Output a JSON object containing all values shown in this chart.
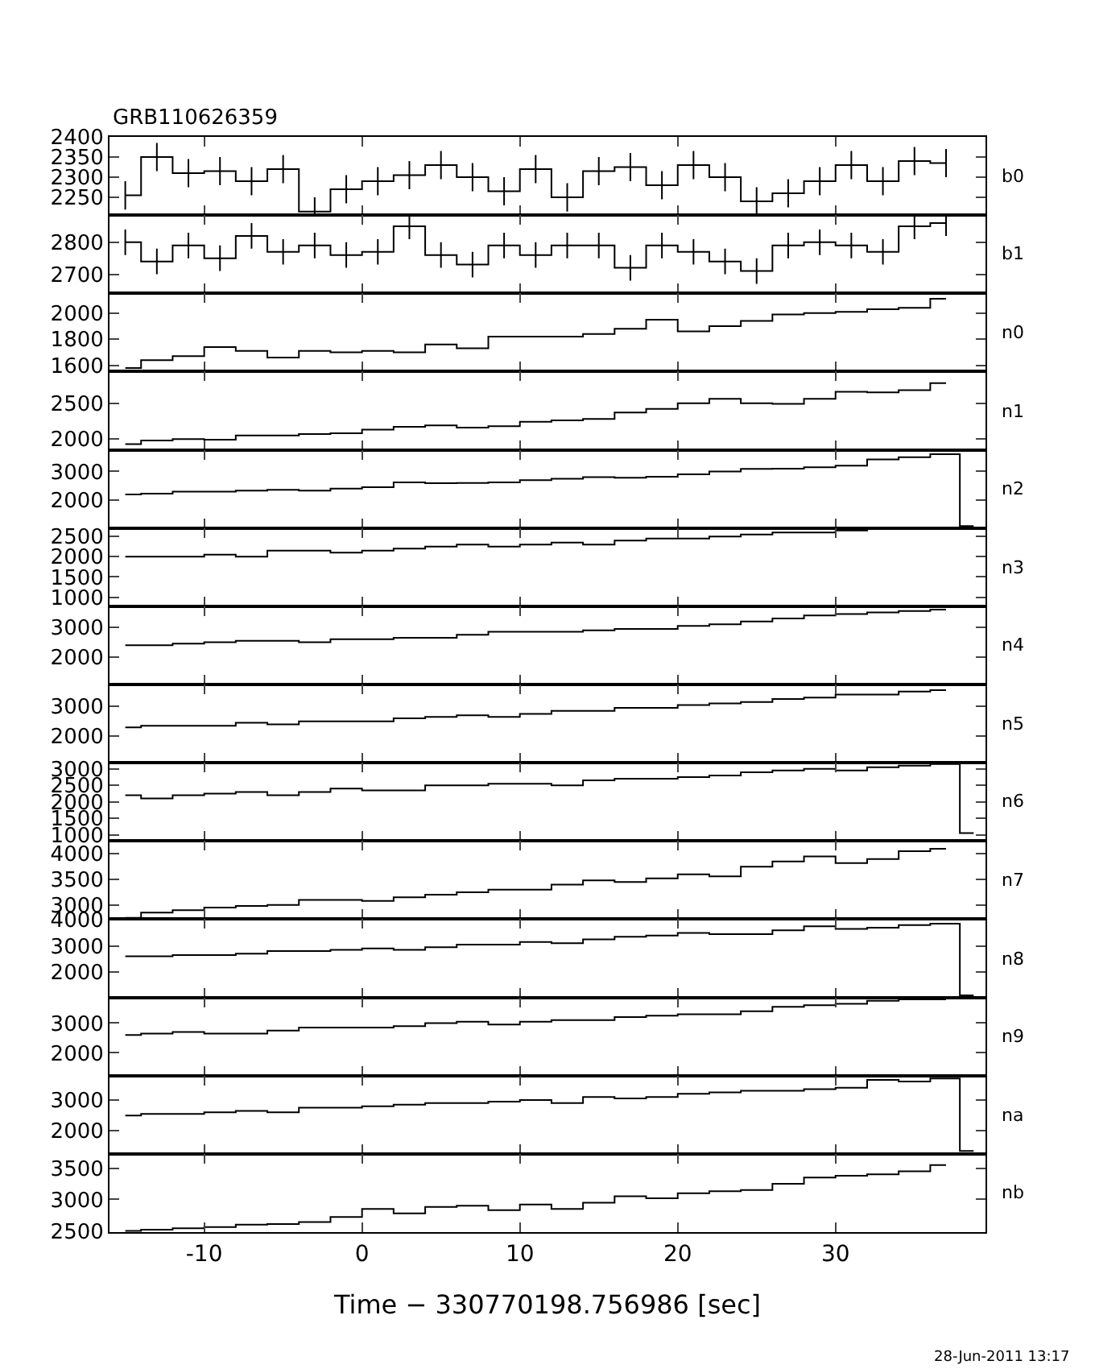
{
  "chart_data": [
    {
      "type": "step",
      "title": "GRB110626359",
      "x": [
        -15,
        -13,
        -11,
        -9,
        -7,
        -5,
        -3,
        -1,
        1,
        3,
        5,
        7,
        9,
        11,
        13,
        15,
        17,
        19,
        21,
        23,
        25,
        27,
        29,
        31,
        33,
        35,
        37
      ],
      "xlim": [
        -16,
        39.5
      ],
      "xticks": [
        -10,
        0,
        10,
        20,
        30
      ],
      "ylim": [
        2206,
        2400
      ],
      "yticks": [
        2250,
        2300,
        2350,
        2400
      ],
      "tick_labels": "y",
      "series": [
        {
          "name": "b0",
          "color": "#000000",
          "values": [
            2255,
            2350,
            2310,
            2315,
            2290,
            2320,
            2215,
            2270,
            2290,
            2305,
            2330,
            2300,
            2265,
            2320,
            2250,
            2315,
            2325,
            2280,
            2330,
            2300,
            2240,
            2260,
            2290,
            2330,
            2290,
            2340,
            2335
          ],
          "errors": [
            35,
            35,
            35,
            35,
            35,
            35,
            35,
            35,
            35,
            35,
            35,
            35,
            35,
            35,
            35,
            35,
            35,
            35,
            35,
            35,
            35,
            35,
            35,
            35,
            35,
            35,
            35
          ]
        }
      ]
    },
    {
      "type": "step",
      "x": [
        -15,
        -13,
        -11,
        -9,
        -7,
        -5,
        -3,
        -1,
        1,
        3,
        5,
        7,
        9,
        11,
        13,
        15,
        17,
        19,
        21,
        23,
        25,
        27,
        29,
        31,
        33,
        35,
        37
      ],
      "xlim": [
        -16,
        39.5
      ],
      "xticks": [
        -10,
        0,
        10,
        20,
        30
      ],
      "ylim": [
        2640,
        2885
      ],
      "yticks": [
        2700,
        2800
      ],
      "tick_labels": "y",
      "series": [
        {
          "name": "b1",
          "color": "#000000",
          "values": [
            2800,
            2740,
            2790,
            2750,
            2820,
            2770,
            2790,
            2760,
            2770,
            2850,
            2760,
            2730,
            2790,
            2760,
            2790,
            2790,
            2720,
            2790,
            2770,
            2740,
            2710,
            2790,
            2800,
            2790,
            2770,
            2850,
            2860
          ],
          "errors": [
            40,
            40,
            40,
            40,
            40,
            40,
            40,
            40,
            40,
            40,
            40,
            40,
            40,
            40,
            40,
            40,
            40,
            40,
            40,
            40,
            40,
            40,
            40,
            40,
            40,
            40,
            40
          ]
        }
      ]
    },
    {
      "type": "step",
      "x": [
        -15,
        -13,
        -11,
        -9,
        -7,
        -5,
        -3,
        -1,
        1,
        3,
        5,
        7,
        9,
        11,
        13,
        15,
        17,
        19,
        21,
        23,
        25,
        27,
        29,
        31,
        33,
        35,
        37
      ],
      "xlim": [
        -16,
        39.5
      ],
      "xticks": [
        -10,
        0,
        10,
        20,
        30
      ],
      "ylim": [
        1552,
        2151
      ],
      "yticks": [
        1600,
        1800,
        2000
      ],
      "tick_labels": "y",
      "series": [
        {
          "name": "n0",
          "color": "#000000",
          "values": [
            1580,
            1640,
            1670,
            1740,
            1710,
            1660,
            1710,
            1700,
            1710,
            1700,
            1760,
            1730,
            1820,
            1820,
            1820,
            1840,
            1880,
            1950,
            1860,
            1900,
            1940,
            1990,
            2000,
            2010,
            2030,
            2040,
            2110
          ]
        }
      ]
    },
    {
      "type": "step",
      "x": [
        -15,
        -13,
        -11,
        -9,
        -7,
        -5,
        -3,
        -1,
        1,
        3,
        5,
        7,
        9,
        11,
        13,
        15,
        17,
        19,
        21,
        23,
        25,
        27,
        29,
        31,
        33,
        35,
        37
      ],
      "xlim": [
        -16,
        39.5
      ],
      "xticks": [
        -10,
        0,
        10,
        20,
        30
      ],
      "ylim": [
        1850,
        2940
      ],
      "yticks": [
        2000,
        2500
      ],
      "tick_labels": "y",
      "series": [
        {
          "name": "n1",
          "color": "#000000",
          "values": [
            1930,
            1980,
            2000,
            1990,
            2050,
            2050,
            2070,
            2080,
            2130,
            2170,
            2190,
            2160,
            2180,
            2240,
            2260,
            2280,
            2370,
            2420,
            2500,
            2560,
            2500,
            2490,
            2560,
            2660,
            2650,
            2680,
            2780
          ]
        }
      ]
    },
    {
      "type": "step",
      "x": [
        -15,
        -13,
        -11,
        -9,
        -7,
        -5,
        -3,
        -1,
        1,
        3,
        5,
        7,
        9,
        11,
        13,
        15,
        17,
        19,
        21,
        23,
        25,
        27,
        29,
        31,
        33,
        35,
        37,
        38.75
      ],
      "xlim": [
        -16,
        39.5
      ],
      "xticks": [
        -10,
        0,
        10,
        20,
        30
      ],
      "ylim": [
        1030,
        3755
      ],
      "yticks": [
        2000,
        3000
      ],
      "tick_labels": "y",
      "series": [
        {
          "name": "n2",
          "color": "#000000",
          "values": [
            2200,
            2230,
            2300,
            2300,
            2330,
            2360,
            2330,
            2400,
            2450,
            2620,
            2590,
            2600,
            2620,
            2700,
            2750,
            2800,
            2780,
            2820,
            2900,
            3000,
            3090,
            3100,
            3150,
            3200,
            3420,
            3500,
            3600,
            1100
          ]
        }
      ]
    },
    {
      "type": "step",
      "x": [
        -15,
        -13,
        -11,
        -9,
        -7,
        -5,
        -3,
        -1,
        1,
        3,
        5,
        7,
        9,
        11,
        13,
        15,
        17,
        19,
        21,
        23,
        25,
        27,
        29,
        31,
        33,
        35,
        37
      ],
      "xlim": [
        -16,
        39.5
      ],
      "xticks": [
        -10,
        0,
        10,
        20,
        30
      ],
      "ylim": [
        776,
        2708
      ],
      "yticks": [
        1000,
        1500,
        2000,
        2500
      ],
      "tick_labels": "y",
      "series": [
        {
          "name": "n3",
          "color": "#000000",
          "values": [
            2000,
            2000,
            2000,
            2050,
            2000,
            2150,
            2150,
            2100,
            2150,
            2200,
            2250,
            2300,
            2250,
            2300,
            2350,
            2300,
            2400,
            2450,
            2450,
            2500,
            2550,
            2600,
            2600,
            2650,
            2700,
            2700,
            2700
          ]
        }
      ]
    },
    {
      "type": "step",
      "x": [
        -15,
        -13,
        -11,
        -9,
        -7,
        -5,
        -3,
        -1,
        1,
        3,
        5,
        7,
        9,
        11,
        13,
        15,
        17,
        19,
        21,
        23,
        25,
        27,
        29,
        31,
        33,
        35,
        37
      ],
      "xlim": [
        -16,
        39.5
      ],
      "xticks": [
        -10,
        0,
        10,
        20,
        30
      ],
      "ylim": [
        1077,
        3710
      ],
      "yticks": [
        2000,
        3000
      ],
      "tick_labels": "y",
      "series": [
        {
          "name": "n4",
          "color": "#000000",
          "values": [
            2400,
            2400,
            2450,
            2500,
            2550,
            2550,
            2500,
            2600,
            2600,
            2650,
            2650,
            2750,
            2850,
            2850,
            2850,
            2900,
            2950,
            2950,
            3050,
            3100,
            3200,
            3300,
            3400,
            3450,
            3500,
            3550,
            3600
          ]
        }
      ]
    },
    {
      "type": "step",
      "x": [
        -15,
        -13,
        -11,
        -9,
        -7,
        -5,
        -3,
        -1,
        1,
        3,
        5,
        7,
        9,
        11,
        13,
        15,
        17,
        19,
        21,
        23,
        25,
        27,
        29,
        31,
        33,
        35,
        37
      ],
      "xlim": [
        -16,
        39.5
      ],
      "xticks": [
        -10,
        0,
        10,
        20,
        30
      ],
      "ylim": [
        1110,
        3737
      ],
      "yticks": [
        2000,
        3000
      ],
      "tick_labels": "y",
      "series": [
        {
          "name": "n5",
          "color": "#000000",
          "values": [
            2300,
            2350,
            2350,
            2350,
            2450,
            2400,
            2500,
            2500,
            2500,
            2600,
            2650,
            2700,
            2650,
            2750,
            2850,
            2850,
            2950,
            2950,
            3050,
            3100,
            3150,
            3250,
            3300,
            3400,
            3400,
            3500,
            3550
          ]
        }
      ]
    },
    {
      "type": "step",
      "x": [
        -15,
        -13,
        -11,
        -9,
        -7,
        -5,
        -3,
        -1,
        1,
        3,
        5,
        7,
        9,
        11,
        13,
        15,
        17,
        19,
        21,
        23,
        25,
        27,
        29,
        31,
        33,
        35,
        37,
        38.75
      ],
      "xlim": [
        -16,
        39.5
      ],
      "xticks": [
        -10,
        0,
        10,
        20,
        30
      ],
      "ylim": [
        813,
        3187
      ],
      "yticks": [
        1000,
        1500,
        2000,
        2500,
        3000
      ],
      "tick_labels": "y",
      "series": [
        {
          "name": "n6",
          "color": "#000000",
          "values": [
            2200,
            2100,
            2200,
            2250,
            2300,
            2200,
            2300,
            2400,
            2350,
            2350,
            2500,
            2500,
            2550,
            2550,
            2500,
            2650,
            2700,
            2700,
            2750,
            2800,
            2900,
            2950,
            3000,
            2950,
            3050,
            3100,
            3150,
            1050
          ]
        }
      ]
    },
    {
      "type": "step",
      "x": [
        -15,
        -13,
        -11,
        -9,
        -7,
        -5,
        -3,
        -1,
        1,
        3,
        5,
        7,
        9,
        11,
        13,
        15,
        17,
        19,
        21,
        23,
        25,
        27,
        29,
        31,
        33,
        35,
        37
      ],
      "xlim": [
        -16,
        39.5
      ],
      "xticks": [
        -10,
        0,
        10,
        20,
        30
      ],
      "ylim": [
        2722,
        4252
      ],
      "yticks": [
        3000,
        3500,
        4000
      ],
      "tick_labels": "y",
      "series": [
        {
          "name": "n7",
          "color": "#000000",
          "values": [
            2750,
            2850,
            2900,
            2950,
            2980,
            3000,
            3100,
            3100,
            3080,
            3150,
            3200,
            3250,
            3300,
            3300,
            3400,
            3480,
            3450,
            3520,
            3600,
            3560,
            3750,
            3850,
            3950,
            3820,
            3900,
            4050,
            4100
          ]
        }
      ]
    },
    {
      "type": "step",
      "x": [
        -15,
        -13,
        -11,
        -9,
        -7,
        -5,
        -3,
        -1,
        1,
        3,
        5,
        7,
        9,
        11,
        13,
        15,
        17,
        19,
        21,
        23,
        25,
        27,
        29,
        31,
        33,
        35,
        37,
        38.75
      ],
      "xlim": [
        -16,
        39.5
      ],
      "xticks": [
        -10,
        0,
        10,
        20,
        30
      ],
      "ylim": [
        1024,
        4025
      ],
      "yticks": [
        2000,
        3000,
        4000
      ],
      "tick_labels": "y",
      "series": [
        {
          "name": "n8",
          "color": "#000000",
          "values": [
            2600,
            2600,
            2650,
            2650,
            2700,
            2800,
            2800,
            2850,
            2900,
            2850,
            2950,
            3050,
            3050,
            3150,
            3100,
            3250,
            3350,
            3400,
            3500,
            3450,
            3450,
            3600,
            3750,
            3650,
            3700,
            3800,
            3850,
            1100
          ]
        }
      ]
    },
    {
      "type": "step",
      "x": [
        -15,
        -13,
        -11,
        -9,
        -7,
        -5,
        -3,
        -1,
        1,
        3,
        5,
        7,
        9,
        11,
        13,
        15,
        17,
        19,
        21,
        23,
        25,
        27,
        29,
        31,
        33,
        35,
        37
      ],
      "xlim": [
        -16,
        39.5
      ],
      "xticks": [
        -10,
        0,
        10,
        20,
        30
      ],
      "ylim": [
        1236,
        3863
      ],
      "yticks": [
        2000,
        3000
      ],
      "tick_labels": "y",
      "series": [
        {
          "name": "n9",
          "color": "#000000",
          "values": [
            2600,
            2650,
            2700,
            2650,
            2650,
            2750,
            2850,
            2850,
            2850,
            2900,
            3000,
            3050,
            2950,
            3050,
            3100,
            3100,
            3200,
            3250,
            3300,
            3300,
            3400,
            3550,
            3600,
            3650,
            3750,
            3800,
            3800
          ]
        }
      ]
    },
    {
      "type": "step",
      "x": [
        -15,
        -13,
        -11,
        -9,
        -7,
        -5,
        -3,
        -1,
        1,
        3,
        5,
        7,
        9,
        11,
        13,
        15,
        17,
        19,
        21,
        23,
        25,
        27,
        29,
        31,
        33,
        35,
        37,
        38.75
      ],
      "xlim": [
        -16,
        39.5
      ],
      "xticks": [
        -10,
        0,
        10,
        20,
        30
      ],
      "ylim": [
        1256,
        3790
      ],
      "yticks": [
        2000,
        3000
      ],
      "tick_labels": "y",
      "series": [
        {
          "name": "na",
          "color": "#000000",
          "values": [
            2500,
            2550,
            2550,
            2600,
            2650,
            2600,
            2750,
            2750,
            2800,
            2850,
            2900,
            2900,
            2950,
            3000,
            2900,
            3100,
            3050,
            3100,
            3200,
            3250,
            3300,
            3300,
            3350,
            3400,
            3650,
            3600,
            3700,
            1350
          ]
        }
      ]
    },
    {
      "type": "step",
      "x": [
        -15,
        -13,
        -11,
        -9,
        -7,
        -5,
        -3,
        -1,
        1,
        3,
        5,
        7,
        9,
        11,
        13,
        15,
        17,
        19,
        21,
        23,
        25,
        27,
        29,
        31,
        33,
        35,
        37
      ],
      "xlim": [
        -16,
        39.5
      ],
      "xticks": [
        -10,
        0,
        10,
        20,
        30
      ],
      "ylim": [
        2480,
        3727
      ],
      "yticks": [
        2500,
        3000,
        3500
      ],
      "xlabel": "Time − 330770198.756986 [sec]",
      "annotations": [
        "28-Jun-2011 13:17"
      ],
      "series": [
        {
          "name": "nb",
          "color": "#000000",
          "values": [
            2500,
            2520,
            2540,
            2560,
            2600,
            2610,
            2640,
            2720,
            2850,
            2780,
            2880,
            2900,
            2830,
            2920,
            2850,
            2950,
            3050,
            3020,
            3100,
            3130,
            3150,
            3250,
            3350,
            3380,
            3400,
            3450,
            3550
          ]
        }
      ]
    }
  ]
}
